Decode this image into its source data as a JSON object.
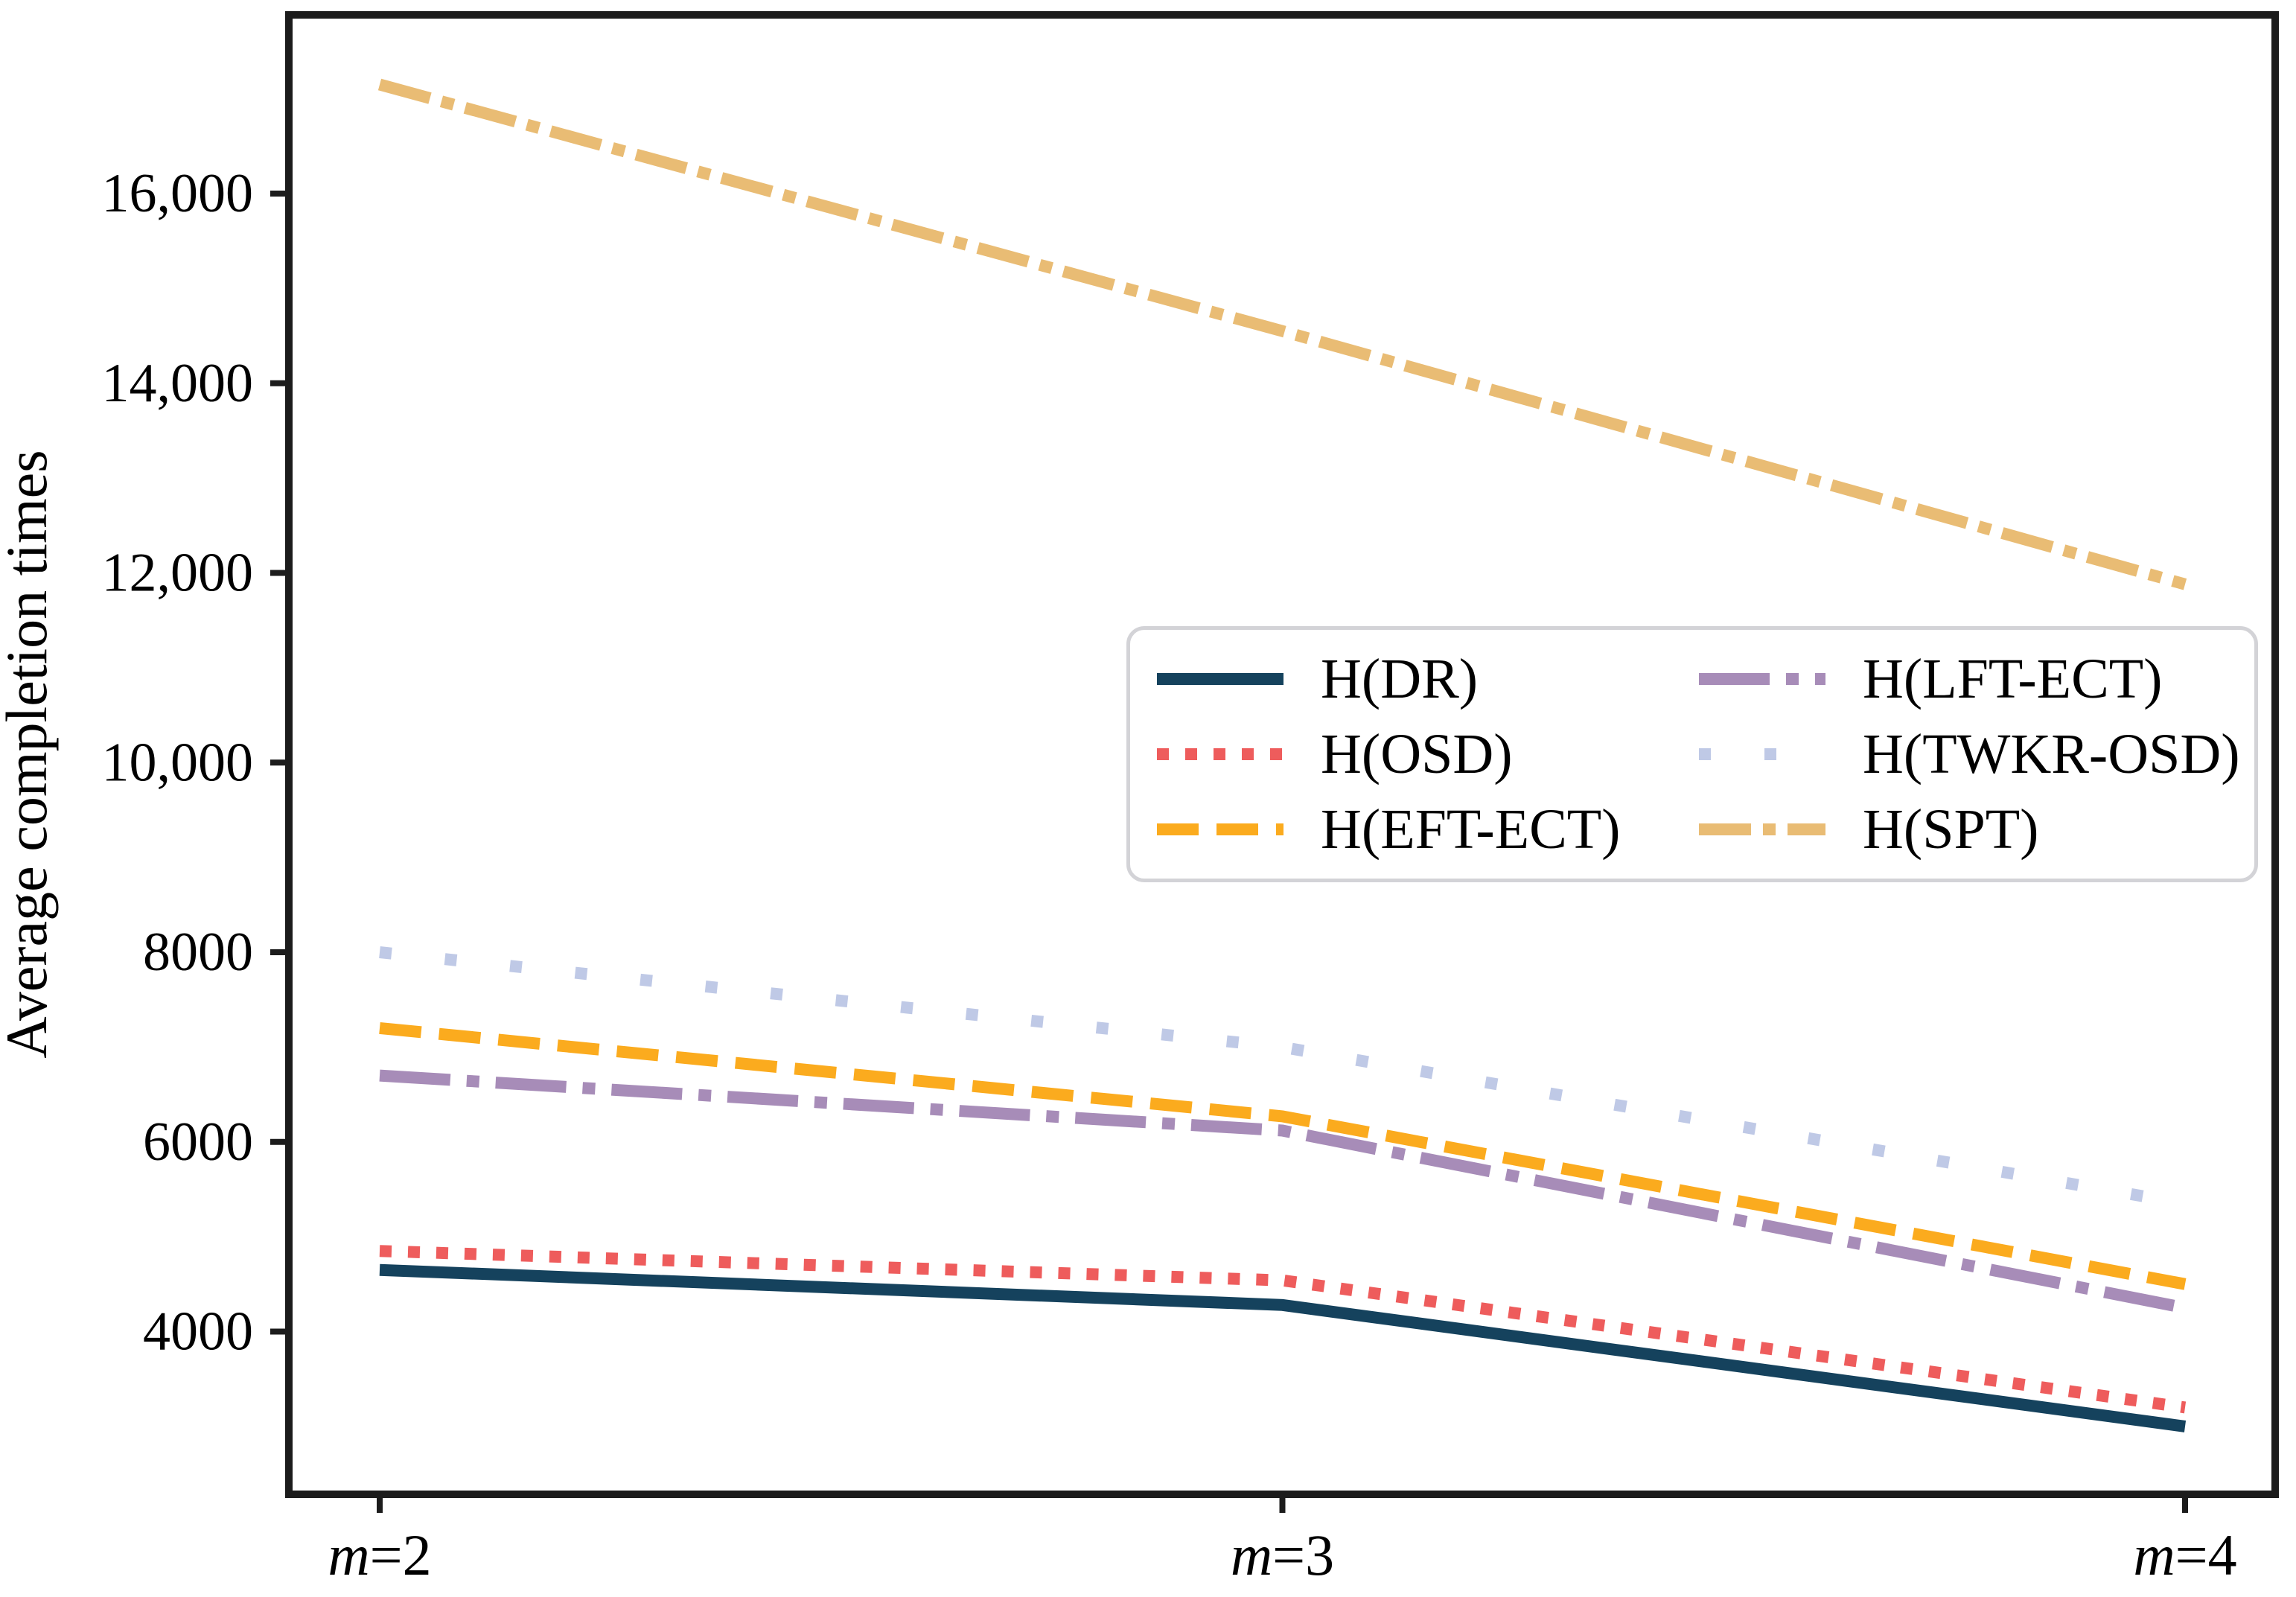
{
  "figure": {
    "background": "#ffffff",
    "spine_color": "#1c1c1c",
    "text_color": "#000000",
    "legend_border_color": "#d3d3d7"
  },
  "chart_data": {
    "type": "line",
    "title": "",
    "xlabel": "",
    "ylabel": "Average completion times",
    "x_categories": [
      "m=2",
      "m=3",
      "m=4"
    ],
    "x_tick_parts": [
      {
        "var": "m",
        "eq": "=2"
      },
      {
        "var": "m",
        "eq": "=3"
      },
      {
        "var": "m",
        "eq": "=4"
      }
    ],
    "y_ticks": [
      {
        "value": 16000,
        "label": "16,000"
      },
      {
        "value": 14000,
        "label": "14,000"
      },
      {
        "value": 12000,
        "label": "12,000"
      },
      {
        "value": 10000,
        "label": "10,000"
      },
      {
        "value": 8000,
        "label": "8000"
      },
      {
        "value": 6000,
        "label": "6000"
      },
      {
        "value": 4000,
        "label": "4000"
      }
    ],
    "ylim": [
      2280,
      17890
    ],
    "grid": false,
    "legend_position": "inside center-right",
    "series": [
      {
        "name": "H(DR)",
        "color": "#15425d",
        "style": "solid",
        "dash": null,
        "values": [
          4650,
          4280,
          3000
        ]
      },
      {
        "name": "H(OSD)",
        "color": "#ee5c5c",
        "style": "dotted",
        "dash": [
          16,
          22
        ],
        "values": [
          4850,
          4540,
          3200
        ]
      },
      {
        "name": "H(EFT-ECT)",
        "color": "#fbab1e",
        "style": "dashed",
        "dash": [
          56,
          24
        ],
        "values": [
          7200,
          6270,
          4500
        ]
      },
      {
        "name": "H(LFT-ECT)",
        "color": "#a78cb8",
        "style": "dashdot",
        "dash": [
          95,
          22,
          17,
          22
        ],
        "values": [
          6700,
          6120,
          4250
        ]
      },
      {
        "name": "H(TWKR-OSD)",
        "color": "#bfc9e6",
        "style": "sparse-dotted",
        "dash": [
          16,
          72
        ],
        "values": [
          8000,
          7000,
          5350
        ]
      },
      {
        "name": "H(SPT)",
        "color": "#e9bc74",
        "style": "long-dashdot",
        "dash": [
          70,
          16,
          17,
          16
        ],
        "values": [
          17150,
          14550,
          11880
        ]
      }
    ]
  }
}
